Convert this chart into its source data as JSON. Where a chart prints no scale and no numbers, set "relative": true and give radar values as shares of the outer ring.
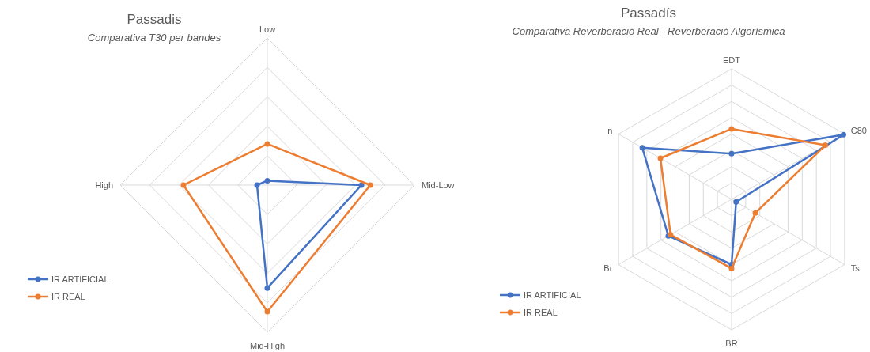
{
  "chart_data": [
    {
      "type": "radar",
      "title": "Passadis",
      "subtitle": "Comparativa T30 per bandes",
      "categories": [
        "Low",
        "Mid-Low",
        "Mid-High",
        "High"
      ],
      "relative": true,
      "grid": true,
      "legend": "bottom left",
      "marker": "circle",
      "series": [
        {
          "name": "IR ARTIFICIAL",
          "color": "#4472c4",
          "values": [
            0.03,
            0.64,
            0.7,
            0.07
          ]
        },
        {
          "name": "IR REAL",
          "color": "#ed7d31",
          "values": [
            0.28,
            0.7,
            0.86,
            0.57
          ]
        }
      ]
    },
    {
      "type": "radar",
      "title": "Passadís",
      "subtitle": "Comparativa Reverberació Real - Reverberació Algorísmica",
      "categories": [
        "EDT",
        "C80",
        "Ts",
        "BR",
        "Br",
        "n"
      ],
      "relative": true,
      "grid": true,
      "legend": "bottom left",
      "marker": "circle",
      "series": [
        {
          "name": "IR ARTIFICIAL",
          "color": "#4472c4",
          "values": [
            0.35,
            0.99,
            0.04,
            0.5,
            0.56,
            0.79
          ]
        },
        {
          "name": "IR REAL",
          "color": "#ed7d31",
          "values": [
            0.54,
            0.83,
            0.21,
            0.53,
            0.54,
            0.63
          ]
        }
      ]
    }
  ]
}
